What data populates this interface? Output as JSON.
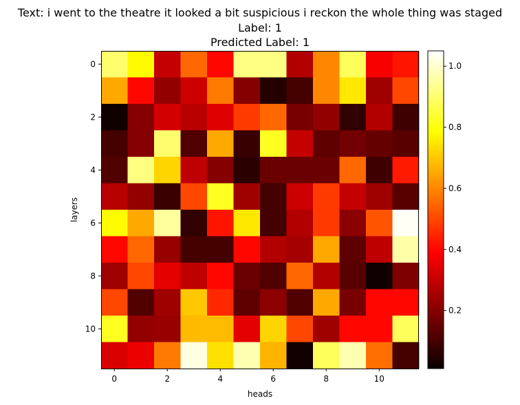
{
  "title_lines": [
    "Text: i went to the theatre it looked a bit suspicious i reckon the whole thing was staged",
    "Label: 1",
    "Predicted Label: 1"
  ],
  "chart_data": {
    "type": "heatmap",
    "colormap": "hot",
    "xlabel": "heads",
    "ylabel": "layers",
    "x_ticks": [
      "0",
      "2",
      "4",
      "6",
      "8",
      "10"
    ],
    "y_ticks": [
      "0",
      "2",
      "4",
      "6",
      "8",
      "10"
    ],
    "colorbar_ticks": [
      "0.2",
      "0.4",
      "0.6",
      "0.8",
      "1.0"
    ],
    "colorbar_range": [
      0.01,
      1.05
    ],
    "values": [
      [
        0.9,
        0.78,
        0.3,
        0.55,
        0.4,
        0.92,
        0.92,
        0.27,
        0.6,
        0.88,
        0.38,
        0.42
      ],
      [
        0.65,
        0.4,
        0.22,
        0.31,
        0.58,
        0.2,
        0.05,
        0.1,
        0.6,
        0.75,
        0.24,
        0.5
      ],
      [
        0.02,
        0.2,
        0.32,
        0.28,
        0.34,
        0.48,
        0.55,
        0.18,
        0.22,
        0.07,
        0.27,
        0.09
      ],
      [
        0.1,
        0.2,
        0.9,
        0.12,
        0.65,
        0.08,
        0.82,
        0.3,
        0.14,
        0.17,
        0.15,
        0.13
      ],
      [
        0.12,
        0.92,
        0.72,
        0.29,
        0.2,
        0.06,
        0.16,
        0.16,
        0.16,
        0.55,
        0.09,
        0.43
      ],
      [
        0.28,
        0.22,
        0.08,
        0.5,
        0.82,
        0.24,
        0.1,
        0.31,
        0.48,
        0.3,
        0.24,
        0.13
      ],
      [
        0.78,
        0.65,
        0.95,
        0.07,
        0.42,
        0.75,
        0.1,
        0.27,
        0.48,
        0.21,
        0.52,
        1.04
      ],
      [
        0.4,
        0.55,
        0.23,
        0.1,
        0.1,
        0.4,
        0.27,
        0.25,
        0.65,
        0.14,
        0.29,
        0.96
      ],
      [
        0.24,
        0.5,
        0.35,
        0.29,
        0.4,
        0.16,
        0.12,
        0.55,
        0.27,
        0.13,
        0.02,
        0.19
      ],
      [
        0.5,
        0.12,
        0.24,
        0.7,
        0.45,
        0.14,
        0.21,
        0.12,
        0.65,
        0.18,
        0.4,
        0.4
      ],
      [
        0.82,
        0.22,
        0.23,
        0.68,
        0.68,
        0.35,
        0.72,
        0.5,
        0.24,
        0.4,
        0.4,
        0.88
      ],
      [
        0.33,
        0.36,
        0.58,
        1.02,
        0.74,
        0.97,
        0.67,
        0.02,
        0.88,
        0.97,
        0.56,
        0.1
      ]
    ]
  }
}
